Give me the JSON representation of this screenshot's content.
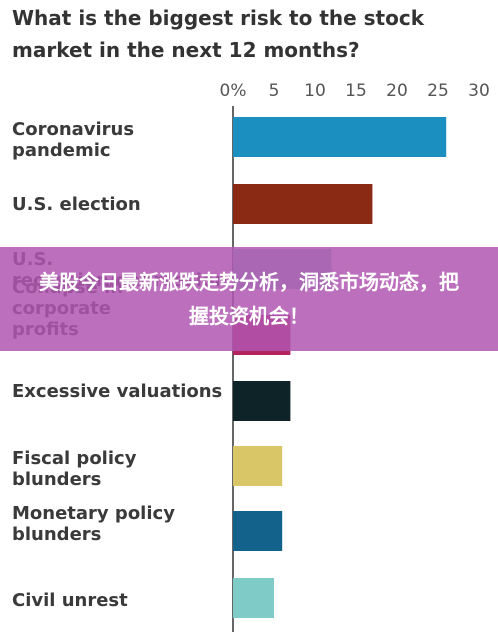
{
  "chart_data": {
    "type": "bar",
    "orientation": "horizontal",
    "title": "What is the biggest risk to the stock market in the next 12 months?",
    "categories": [
      "Coronavirus pandemic",
      "U.S. election",
      "U.S. recession/depression",
      "Collapse in corporate profits",
      "Excessive valuations",
      "Fiscal policy blunders",
      "Monetary policy blunders",
      "Civil unrest"
    ],
    "values": [
      26,
      17,
      12,
      7,
      7,
      6,
      6,
      5
    ],
    "colors": [
      "#1a8fc0",
      "#8a2914",
      "#7fcbc7",
      "#b3245f",
      "#0e2327",
      "#d9c767",
      "#12628b",
      "#7fcbc7"
    ],
    "xlim": [
      0,
      30
    ],
    "xticks": [
      {
        "value": 0,
        "label": "0%"
      },
      5,
      10,
      15,
      20,
      25,
      30
    ],
    "grid": false
  },
  "overlay": {
    "banner": "美股今日最新涨跌走势分析，洞悉市场动态，把握投资机会！"
  }
}
